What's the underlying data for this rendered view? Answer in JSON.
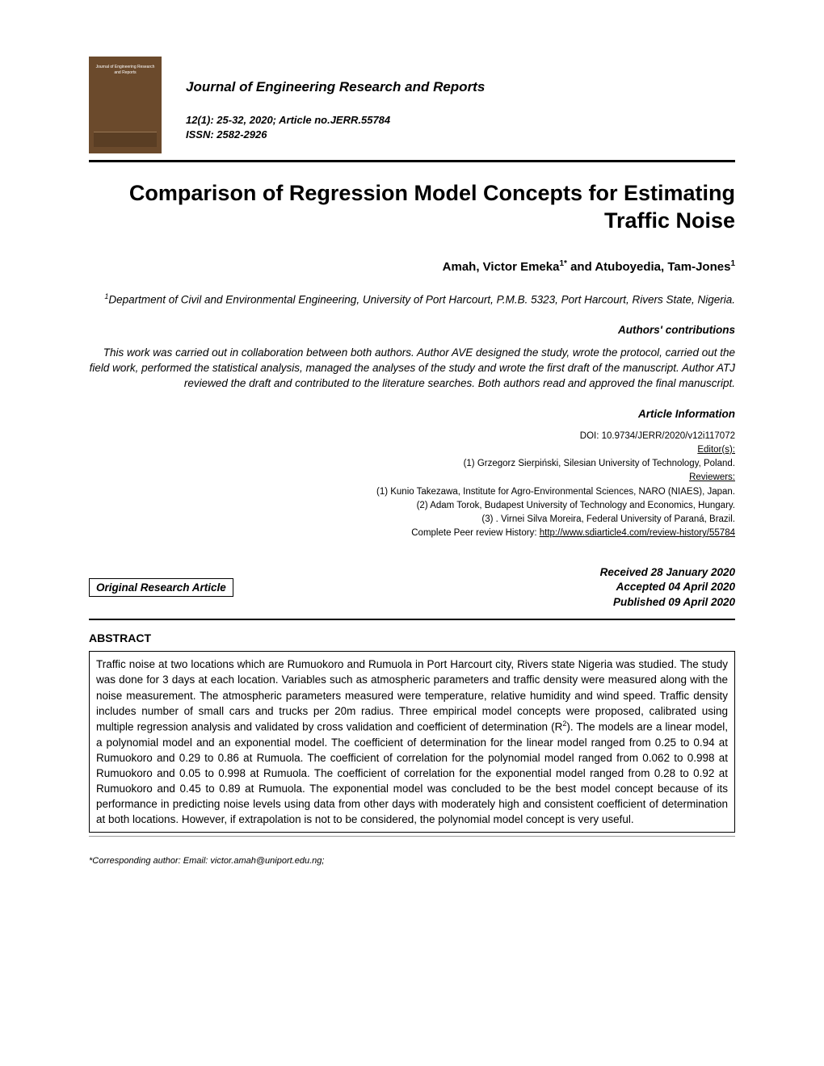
{
  "journal": {
    "name": "Journal of Engineering Research and Reports",
    "thumbnail_title": "Journal of\nEngineering\nResearch and Reports",
    "citation_line1": "12(1): 25-32, 2020; Article no.JERR.55784",
    "citation_line2": "ISSN: 2582-2926"
  },
  "article": {
    "title": "Comparison of Regression Model Concepts for Estimating Traffic Noise",
    "authors_html": "Amah, Victor Emeka<sup>1*</sup> and Atuboyedia, Tam-Jones<sup>1</sup>",
    "affiliation_html": "<sup>1</sup>Department of Civil and Environmental Engineering, University of Port Harcourt, P.M.B. 5323, Port Harcourt, Rivers State, Nigeria.",
    "contributions_label": "Authors' contributions",
    "contributions": "This work was carried out in collaboration between both authors. Author AVE designed the study, wrote the protocol, carried out the field work, performed the statistical analysis, managed the analyses of the study and wrote the first draft of the manuscript. Author ATJ reviewed the draft and contributed to the literature searches. Both authors read and approved the final manuscript.",
    "info_label": "Article Information",
    "doi": "DOI: 10.9734/JERR/2020/v12i117072",
    "editors_label": "Editor(s):",
    "editors": "(1) Grzegorz Sierpiński, Silesian University of Technology, Poland.",
    "reviewers_label": "Reviewers:",
    "reviewer1": "(1) Kunio Takezawa, Institute for Agro-Environmental Sciences, NARO (NIAES), Japan.",
    "reviewer2": "(2) Adam Torok, Budapest University of Technology and Economics, Hungary.",
    "reviewer3": "(3) . Virnei Silva Moreira, Federal University of Paraná, Brazil.",
    "peer_review_prefix": "Complete Peer review History: ",
    "peer_review_url": "http://www.sdiarticle4.com/review-history/55784",
    "type_label": "Original Research Article",
    "received": "Received 28 January 2020",
    "accepted": "Accepted 04 April 2020",
    "published": "Published 09 April 2020",
    "abstract_label": "ABSTRACT",
    "abstract_html": "Traffic noise at two locations which are Rumuokoro and Rumuola in Port Harcourt city, Rivers state Nigeria was studied. The study was done for 3 days at each location. Variables such as atmospheric parameters and traffic density were measured along with the noise measurement. The atmospheric parameters measured were temperature, relative humidity and wind speed. Traffic density includes number of small cars and trucks per 20m radius. Three empirical model concepts were proposed, calibrated using multiple regression analysis and validated by cross validation and coefficient of determination (R<sup>2</sup>). The models are a linear model, a polynomial model and an exponential model. The coefficient of determination for the linear model ranged from 0.25 to 0.94 at Rumuokoro and 0.29 to 0.86 at Rumuola. The coefficient of correlation for the polynomial model ranged from 0.062 to 0.998 at Rumuokoro and 0.05 to 0.998 at Rumuola. The coefficient of correlation for the exponential model ranged from 0.28 to 0.92 at Rumuokoro and 0.45 to 0.89 at Rumuola. The exponential model was concluded to be the best model concept because of its performance in predicting noise levels using data from other days with moderately high and consistent coefficient of determination at both locations. However, if extrapolation is not to be considered, the polynomial model concept is very useful.",
    "corresponding": "*Corresponding author: Email: victor.amah@uniport.edu.ng;"
  },
  "colors": {
    "page_bg": "#ffffff",
    "text": "#000000",
    "thumb_bg": "#6b4a2c",
    "rule": "#000000",
    "footer_rule": "#999999"
  }
}
